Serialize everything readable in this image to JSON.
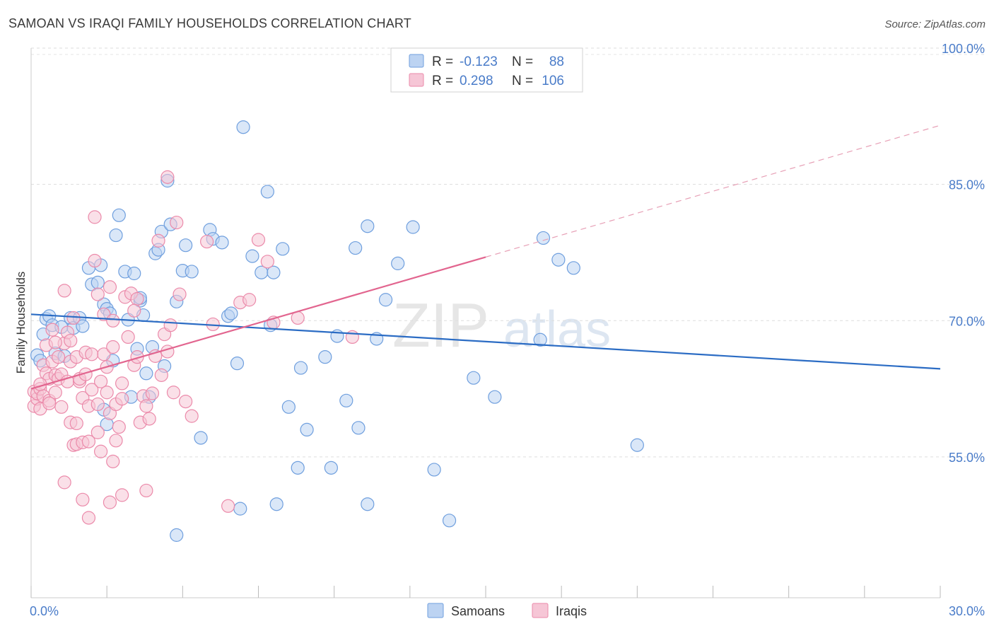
{
  "chart_data": {
    "type": "scatter",
    "title": "SAMOAN VS IRAQI FAMILY HOUSEHOLDS CORRELATION CHART",
    "source": "Source: ZipAtlas.com",
    "xlabel": "",
    "ylabel": "Family Households",
    "xlim": [
      0,
      30
    ],
    "ylim": [
      39.5,
      100
    ],
    "x_tick_labels": {
      "min": "0.0%",
      "max": "30.0%"
    },
    "y_ticks": [
      {
        "value": 55,
        "label": "55.0%"
      },
      {
        "value": 70,
        "label": "70.0%"
      },
      {
        "value": 85,
        "label": "85.0%"
      },
      {
        "value": 100,
        "label": "100.0%"
      }
    ],
    "grid": true,
    "watermark": {
      "zip": "ZIP",
      "atlas": "atlas"
    },
    "legend": {
      "r_label": "R =",
      "n_label": "N =",
      "entries": [
        {
          "name": "Samoans",
          "r": "-0.123",
          "n": "88"
        },
        {
          "name": "Iraqis",
          "r": "0.298",
          "n": "106"
        }
      ]
    },
    "series": [
      {
        "name": "Samoans",
        "color": "#6f9fde",
        "fill": "#bcd3f2",
        "trend": {
          "x": [
            0,
            30
          ],
          "y": [
            70.7,
            64.7
          ],
          "color": "#2b6cc4"
        },
        "points": [
          [
            0.2,
            66.2
          ],
          [
            0.4,
            68.5
          ],
          [
            0.5,
            70.2
          ],
          [
            0.6,
            70.5
          ],
          [
            0.7,
            69.5
          ],
          [
            0.8,
            66.4
          ],
          [
            0.3,
            65.6
          ],
          [
            1.0,
            69.3
          ],
          [
            1.1,
            66.1
          ],
          [
            1.3,
            70.3
          ],
          [
            1.4,
            69.2
          ],
          [
            1.6,
            70.3
          ],
          [
            1.7,
            69.4
          ],
          [
            1.9,
            75.8
          ],
          [
            2.0,
            74.0
          ],
          [
            2.2,
            74.2
          ],
          [
            2.3,
            76.1
          ],
          [
            2.4,
            71.8
          ],
          [
            2.5,
            71.3
          ],
          [
            2.6,
            70.8
          ],
          [
            2.4,
            60.2
          ],
          [
            2.5,
            58.6
          ],
          [
            2.7,
            65.6
          ],
          [
            2.8,
            79.4
          ],
          [
            2.9,
            81.6
          ],
          [
            3.1,
            75.4
          ],
          [
            3.2,
            70.1
          ],
          [
            3.4,
            75.2
          ],
          [
            3.5,
            66.9
          ],
          [
            3.6,
            72.2
          ],
          [
            3.6,
            72.5
          ],
          [
            3.7,
            70.6
          ],
          [
            3.3,
            61.6
          ],
          [
            3.9,
            61.6
          ],
          [
            3.8,
            64.2
          ],
          [
            4.0,
            67.1
          ],
          [
            4.1,
            77.4
          ],
          [
            4.2,
            77.8
          ],
          [
            4.3,
            79.8
          ],
          [
            4.4,
            65.0
          ],
          [
            4.5,
            85.4
          ],
          [
            4.6,
            80.6
          ],
          [
            4.8,
            72.1
          ],
          [
            5.0,
            75.5
          ],
          [
            5.1,
            78.3
          ],
          [
            5.3,
            75.4
          ],
          [
            5.6,
            57.1
          ],
          [
            5.9,
            80.0
          ],
          [
            6.0,
            79.0
          ],
          [
            6.3,
            78.6
          ],
          [
            6.5,
            70.5
          ],
          [
            6.6,
            70.8
          ],
          [
            6.8,
            65.3
          ],
          [
            7.0,
            91.3
          ],
          [
            7.3,
            77.1
          ],
          [
            7.6,
            75.3
          ],
          [
            7.8,
            84.2
          ],
          [
            7.9,
            69.5
          ],
          [
            8.0,
            75.3
          ],
          [
            8.3,
            77.9
          ],
          [
            8.5,
            60.5
          ],
          [
            8.8,
            53.8
          ],
          [
            8.9,
            64.8
          ],
          [
            9.1,
            58.0
          ],
          [
            9.7,
            66.0
          ],
          [
            9.9,
            53.8
          ],
          [
            10.1,
            68.3
          ],
          [
            10.4,
            61.2
          ],
          [
            10.7,
            78.0
          ],
          [
            10.8,
            58.2
          ],
          [
            11.1,
            80.4
          ],
          [
            11.1,
            49.8
          ],
          [
            11.4,
            68.0
          ],
          [
            11.7,
            72.3
          ],
          [
            12.1,
            76.3
          ],
          [
            12.6,
            80.3
          ],
          [
            13.3,
            53.6
          ],
          [
            13.8,
            48.0
          ],
          [
            14.6,
            63.7
          ],
          [
            15.3,
            61.6
          ],
          [
            16.8,
            67.9
          ],
          [
            16.9,
            79.1
          ],
          [
            17.4,
            76.7
          ],
          [
            17.9,
            75.8
          ],
          [
            20.0,
            56.3
          ],
          [
            4.8,
            46.4
          ],
          [
            6.9,
            49.3
          ],
          [
            8.1,
            49.8
          ]
        ]
      },
      {
        "name": "Iraqis",
        "color": "#eb8aaa",
        "fill": "#f6c6d6",
        "trend": {
          "x": [
            0,
            15
          ],
          "y": [
            62.5,
            77.0
          ],
          "color": "#e2658f"
        },
        "trend_extension": {
          "x": [
            15,
            30
          ],
          "y": [
            77.0,
            91.5
          ],
          "color": "#e7a0b6"
        },
        "points": [
          [
            0.1,
            62.2
          ],
          [
            0.1,
            60.6
          ],
          [
            0.2,
            61.4
          ],
          [
            0.2,
            62.0
          ],
          [
            0.3,
            60.3
          ],
          [
            0.3,
            62.5
          ],
          [
            0.4,
            61.7
          ],
          [
            0.4,
            65.1
          ],
          [
            0.5,
            64.2
          ],
          [
            0.5,
            67.3
          ],
          [
            0.6,
            63.6
          ],
          [
            0.6,
            61.2
          ],
          [
            0.7,
            65.5
          ],
          [
            0.7,
            69.0
          ],
          [
            0.8,
            62.1
          ],
          [
            0.8,
            64.0
          ],
          [
            0.9,
            66.0
          ],
          [
            0.9,
            63.6
          ],
          [
            1.0,
            60.5
          ],
          [
            1.0,
            64.1
          ],
          [
            1.1,
            73.3
          ],
          [
            1.1,
            67.5
          ],
          [
            1.2,
            68.7
          ],
          [
            1.2,
            63.3
          ],
          [
            1.3,
            65.5
          ],
          [
            1.3,
            58.8
          ],
          [
            1.4,
            56.3
          ],
          [
            1.4,
            70.3
          ],
          [
            1.5,
            66.0
          ],
          [
            1.5,
            56.4
          ],
          [
            1.6,
            63.3
          ],
          [
            1.6,
            63.6
          ],
          [
            1.7,
            61.5
          ],
          [
            1.7,
            56.6
          ],
          [
            1.8,
            66.5
          ],
          [
            1.8,
            64.1
          ],
          [
            1.9,
            60.6
          ],
          [
            1.9,
            56.7
          ],
          [
            2.0,
            62.4
          ],
          [
            2.0,
            66.3
          ],
          [
            2.1,
            81.4
          ],
          [
            2.1,
            76.6
          ],
          [
            2.2,
            72.9
          ],
          [
            2.2,
            60.8
          ],
          [
            2.3,
            63.3
          ],
          [
            2.3,
            55.6
          ],
          [
            2.4,
            70.7
          ],
          [
            2.4,
            66.3
          ],
          [
            2.5,
            62.1
          ],
          [
            2.5,
            64.9
          ],
          [
            2.6,
            73.7
          ],
          [
            2.6,
            59.8
          ],
          [
            2.7,
            70.0
          ],
          [
            2.7,
            67.1
          ],
          [
            2.8,
            60.8
          ],
          [
            2.8,
            56.8
          ],
          [
            2.9,
            58.3
          ],
          [
            3.0,
            63.1
          ],
          [
            3.0,
            61.4
          ],
          [
            3.1,
            72.6
          ],
          [
            3.2,
            68.2
          ],
          [
            3.3,
            73.0
          ],
          [
            3.4,
            65.1
          ],
          [
            3.5,
            66.0
          ],
          [
            3.6,
            58.8
          ],
          [
            3.7,
            61.7
          ],
          [
            3.8,
            60.6
          ],
          [
            3.9,
            59.2
          ],
          [
            4.0,
            62.0
          ],
          [
            4.1,
            66.1
          ],
          [
            4.2,
            78.8
          ],
          [
            4.3,
            64.0
          ],
          [
            4.4,
            68.5
          ],
          [
            4.5,
            66.6
          ],
          [
            4.6,
            69.5
          ],
          [
            4.7,
            62.1
          ],
          [
            4.8,
            80.8
          ],
          [
            5.1,
            61.1
          ],
          [
            5.3,
            59.5
          ],
          [
            5.8,
            78.7
          ],
          [
            6.0,
            69.6
          ],
          [
            6.5,
            49.6
          ],
          [
            6.9,
            72.0
          ],
          [
            7.2,
            72.3
          ],
          [
            7.5,
            78.9
          ],
          [
            7.8,
            76.5
          ],
          [
            8.0,
            69.8
          ],
          [
            8.8,
            70.3
          ],
          [
            10.6,
            68.2
          ],
          [
            0.6,
            60.9
          ],
          [
            0.3,
            63.0
          ],
          [
            1.1,
            52.2
          ],
          [
            1.7,
            50.3
          ],
          [
            1.9,
            48.3
          ],
          [
            2.6,
            50.0
          ],
          [
            3.0,
            50.8
          ],
          [
            3.8,
            51.3
          ],
          [
            2.7,
            54.5
          ],
          [
            1.5,
            58.7
          ],
          [
            3.5,
            72.4
          ],
          [
            4.9,
            72.9
          ],
          [
            1.3,
            67.8
          ],
          [
            2.2,
            57.7
          ],
          [
            3.4,
            71.1
          ],
          [
            4.5,
            85.8
          ],
          [
            0.8,
            67.6
          ]
        ]
      }
    ]
  }
}
